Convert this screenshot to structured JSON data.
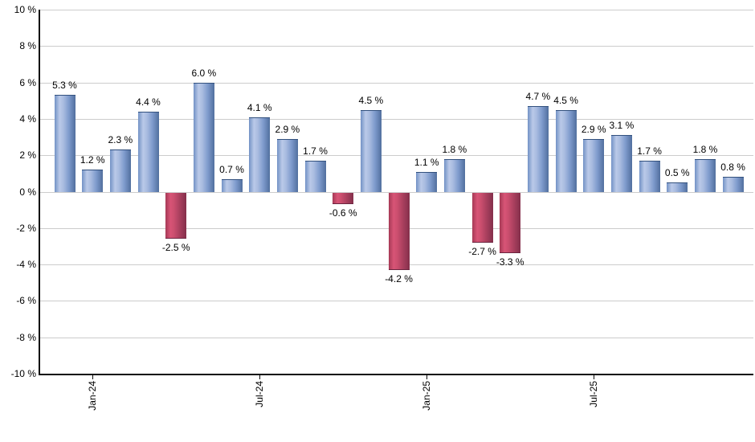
{
  "chart_data": {
    "type": "bar",
    "title": "",
    "xlabel": "",
    "ylabel": "",
    "unit": "%",
    "ylim": [
      -10,
      10
    ],
    "y_tick_step": 2,
    "grid": true,
    "legend": "none",
    "bar_count": 25,
    "values": [
      5.3,
      1.2,
      2.3,
      4.4,
      -2.5,
      6.0,
      0.7,
      4.1,
      2.9,
      1.7,
      -0.6,
      4.5,
      -4.2,
      1.1,
      1.8,
      -2.7,
      -3.3,
      4.7,
      4.5,
      2.9,
      3.1,
      1.7,
      0.5,
      1.8,
      0.8
    ],
    "display_labels": [
      "5.3 %",
      "1.2 %",
      "2.3 %",
      "4.4 %",
      "-2.5 %",
      "6.0 %",
      "0.7 %",
      "4.1 %",
      "2.9 %",
      "1.7 %",
      "-0.6 %",
      "4.5 %",
      "-4.2 %",
      "1.1 %",
      "1.8 %",
      "-2.7 %",
      "-3.3 %",
      "4.7 %",
      "4.5 %",
      "2.9 %",
      "3.1 %",
      "1.7 %",
      "0.5 %",
      "1.8 %",
      "0.8 %"
    ],
    "x_ticks": [
      {
        "label": "Jan-24",
        "bar_index": 1
      },
      {
        "label": "Jul-24",
        "bar_index": 7
      },
      {
        "label": "Jan-25",
        "bar_index": 13
      },
      {
        "label": "Jul-25",
        "bar_index": 19
      }
    ],
    "y_ticks": [
      {
        "label": "10 %",
        "value": 10
      },
      {
        "label": "8 %",
        "value": 8
      },
      {
        "label": "6 %",
        "value": 6
      },
      {
        "label": "4 %",
        "value": 4
      },
      {
        "label": "2 %",
        "value": 2
      },
      {
        "label": "0 %",
        "value": 0
      },
      {
        "label": "-2 %",
        "value": -2
      },
      {
        "label": "-4 %",
        "value": -4
      },
      {
        "label": "-6 %",
        "value": -6
      },
      {
        "label": "-8 %",
        "value": -8
      },
      {
        "label": "-10 %",
        "value": -10
      }
    ],
    "colors": {
      "positive_bar": [
        "#7292c5",
        "#bac9e8",
        "#a9bce0",
        "#7f9bcd",
        "#516f9e"
      ],
      "negative_bar": [
        "#a63a56",
        "#d85476",
        "#ca4e6e",
        "#a93f5e",
        "#842f4b"
      ],
      "grid": "#cccccc",
      "axis": "#0a0a0a",
      "text": "#000000",
      "background": "#ffffff"
    }
  }
}
